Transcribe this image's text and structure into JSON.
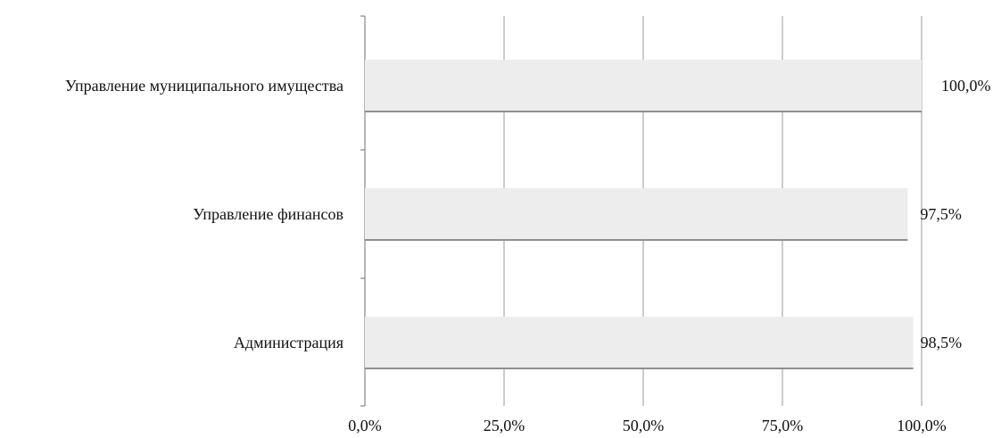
{
  "chart_data": {
    "type": "bar",
    "orientation": "horizontal",
    "categories": [
      "Управление муниципального имущества",
      "Управление финансов",
      "Администрация"
    ],
    "values": [
      100.0,
      97.5,
      98.5
    ],
    "data_labels": [
      "100,0%",
      "97,5%",
      "98,5%"
    ],
    "xlim": [
      0,
      100
    ],
    "x_ticks": [
      0,
      25,
      50,
      75,
      100
    ],
    "x_tick_labels": [
      "0,0%",
      "25,0%",
      "50,0%",
      "75,0%",
      "100,0%"
    ],
    "grid": true,
    "title": "",
    "xlabel": "",
    "ylabel": "",
    "legend": "none",
    "colors": {
      "bar_fill": "#ededed",
      "bar_shadow": "#8f8f8f",
      "grid": "#9a9a9a",
      "axis": "#6f6f6f",
      "text": "#111111"
    }
  }
}
